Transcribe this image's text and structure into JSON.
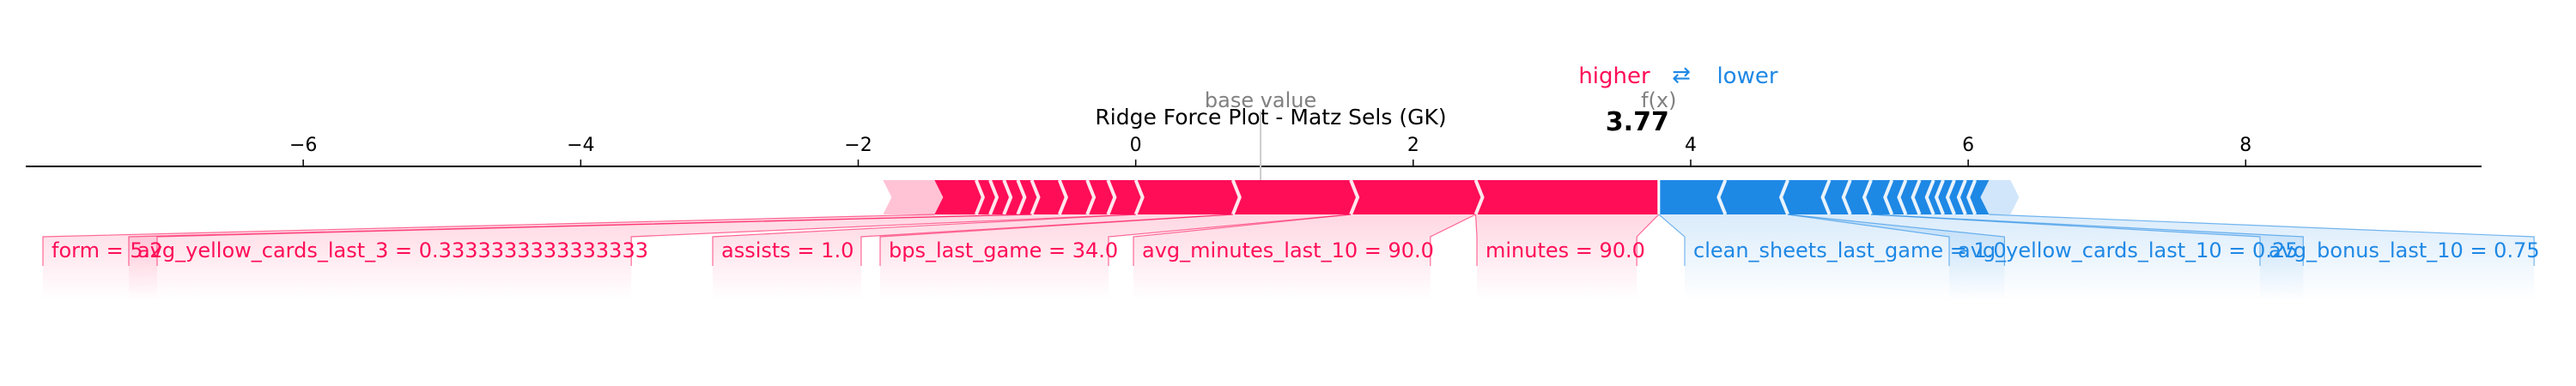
{
  "chart_data": {
    "type": "force",
    "title": "Ridge Force Plot - Matz Sels (GK)",
    "legend": {
      "higher": "higher",
      "arrow": "⇄",
      "lower": "lower"
    },
    "base_value_label": "base value",
    "base_value": 0.9,
    "fx_label": "f(x)",
    "fx_value_text": "3.77",
    "fx_value": 3.77,
    "xlim": [
      -8,
      9.7
    ],
    "ticks": [
      -6,
      -4,
      -2,
      0,
      2,
      4,
      6,
      8
    ],
    "tick_labels": [
      "−6",
      "−4",
      "−2",
      "0",
      "2",
      "4",
      "6",
      "8"
    ],
    "positive_features": [
      {
        "label": "form = 5.2",
        "start": -1.45,
        "end": -0.75
      },
      {
        "label": "avg_yellow_cards_last_3 = 0.3333333333333333",
        "start": -0.75,
        "end": 0.0
      },
      {
        "label": "assists = 1.0",
        "start": 0.0,
        "end": 0.7
      },
      {
        "label": "bps_last_game = 34.0",
        "start": 0.7,
        "end": 1.55
      },
      {
        "label": "avg_minutes_last_10 = 90.0",
        "start": 1.55,
        "end": 2.45
      },
      {
        "label": "minutes = 90.0",
        "start": 2.45,
        "end": 3.77
      }
    ],
    "negative_features": [
      {
        "label": "clean_sheets_last_game = 1.0",
        "start": 3.77,
        "end": 4.7
      },
      {
        "label": "avg_yellow_cards_last_10 = 0.25",
        "start": 4.7,
        "end": 5.3
      },
      {
        "label": "avg_bonus_last_10 = 0.75",
        "start": 5.3,
        "end": 6.15
      }
    ],
    "colors": {
      "positive": "#ff0d57",
      "positive_light": "#ffc3d5",
      "negative": "#1e88e5",
      "negative_light": "#d1e6fa",
      "axis": "#000000",
      "base": "#808080"
    }
  }
}
